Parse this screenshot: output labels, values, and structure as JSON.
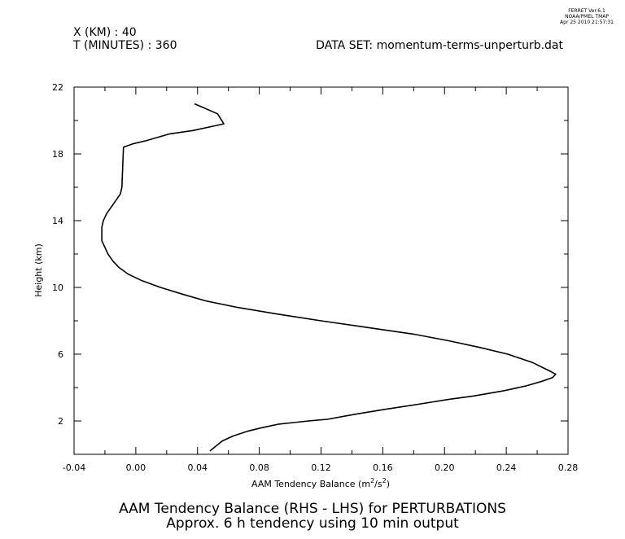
{
  "header": {
    "x_label": "X (KM) : 40",
    "t_label": "T (MINUTES) : 360",
    "dataset_label": "DATA SET: momentum-terms-unperturb.dat",
    "stamp_line1": "FERRET Ver.6.1",
    "stamp_line2": "NOAA/PMEL TMAP",
    "stamp_line3": "Apr 25 2010 21:57:31"
  },
  "chart_data": {
    "type": "line",
    "title": "AAM Tendency Balance (RHS - LHS) for PERTURBATIONS",
    "subtitle": "Approx. 6 h tendency using 10 min output",
    "xlabel_pre": "AAM Tendency Balance (m",
    "xlabel_sup1": "2",
    "xlabel_mid": "/s",
    "xlabel_sup2": "2",
    "xlabel_post": ")",
    "ylabel": "Height (km)",
    "xlim": [
      -0.04,
      0.28
    ],
    "ylim": [
      0,
      22
    ],
    "x_ticks": [
      -0.04,
      0.0,
      0.04,
      0.08,
      0.12,
      0.16,
      0.2,
      0.24,
      0.28
    ],
    "x_tick_labels": [
      "-0.04",
      "0.00",
      "0.04",
      "0.08",
      "0.12",
      "0.16",
      "0.20",
      "0.24",
      "0.28"
    ],
    "y_ticks": [
      2,
      6,
      10,
      14,
      18,
      22
    ],
    "y_tick_labels": [
      "2",
      "6",
      "10",
      "14",
      "18",
      "22"
    ],
    "grid": false,
    "series": [
      {
        "x": [
          0.048,
          0.056,
          0.063,
          0.073,
          0.082,
          0.092,
          0.102,
          0.112,
          0.124,
          0.142,
          0.162,
          0.183,
          0.203,
          0.219,
          0.238,
          0.253,
          0.264,
          0.27,
          0.272,
          0.268,
          0.257,
          0.241,
          0.223,
          0.203,
          0.18,
          0.15,
          0.12,
          0.092,
          0.066,
          0.045,
          0.03,
          0.016,
          0.004,
          -0.005,
          -0.011,
          -0.015,
          -0.018,
          -0.02,
          -0.022,
          -0.022,
          -0.021,
          -0.019,
          -0.016,
          -0.013,
          -0.01,
          -0.009,
          -0.008,
          -0.002,
          0.007,
          0.022,
          0.037,
          0.057,
          0.053,
          0.038
        ],
        "y": [
          0.2,
          0.8,
          1.1,
          1.4,
          1.6,
          1.8,
          1.9,
          2.0,
          2.1,
          2.4,
          2.7,
          3.0,
          3.3,
          3.5,
          3.8,
          4.1,
          4.4,
          4.6,
          4.8,
          5.0,
          5.5,
          6.0,
          6.4,
          6.8,
          7.2,
          7.6,
          8.0,
          8.4,
          8.8,
          9.2,
          9.6,
          10.0,
          10.4,
          10.8,
          11.2,
          11.6,
          12.0,
          12.4,
          12.8,
          13.6,
          14.0,
          14.4,
          14.8,
          15.2,
          15.6,
          16.0,
          18.4,
          18.6,
          18.8,
          19.2,
          19.4,
          19.8,
          20.4,
          21.0
        ]
      }
    ]
  }
}
